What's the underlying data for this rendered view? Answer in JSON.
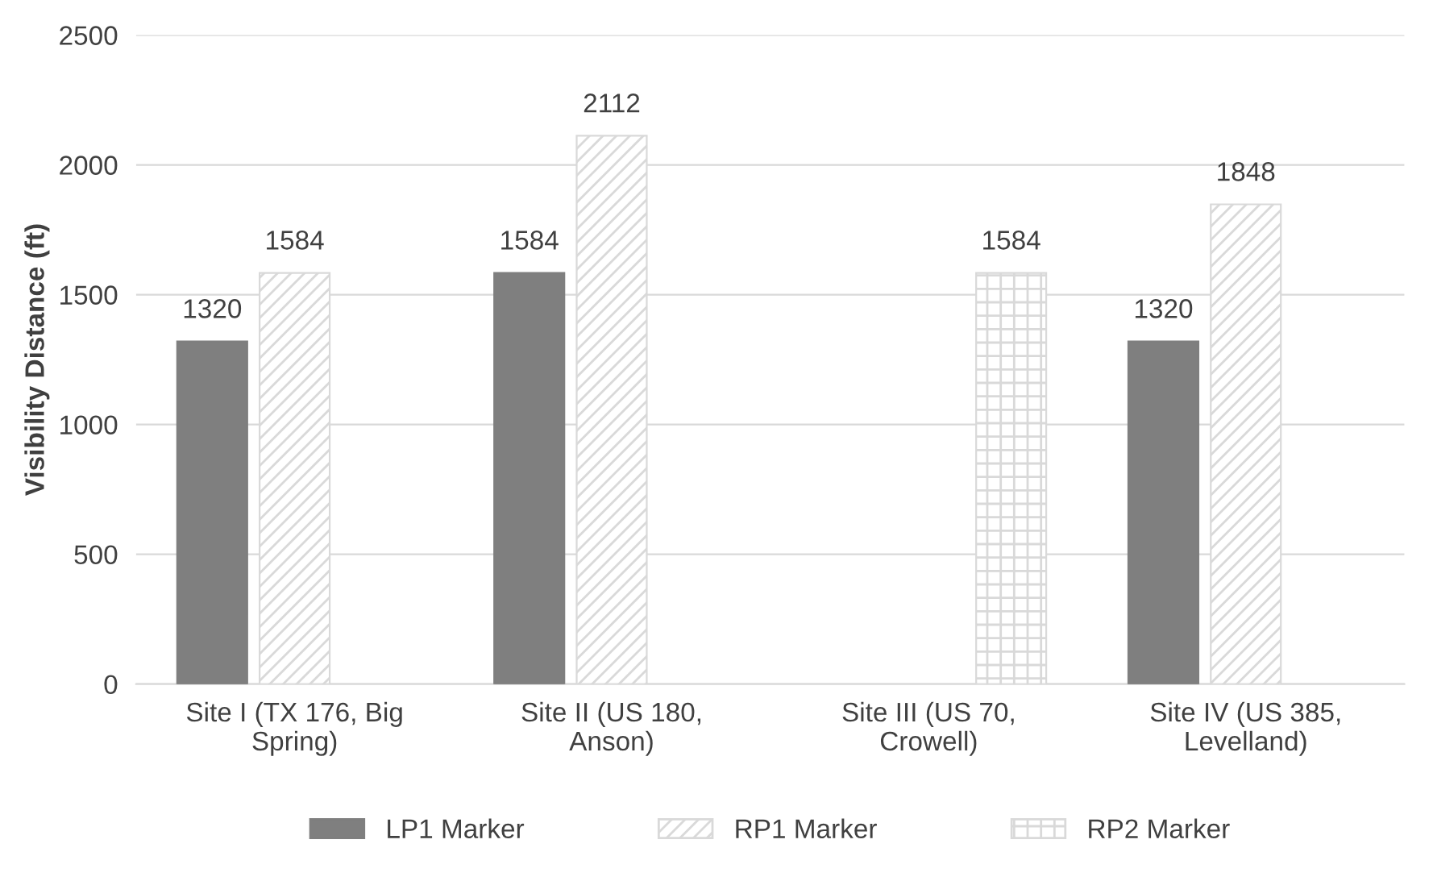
{
  "chart_data": {
    "type": "bar",
    "ylabel": "Visibility Distance (ft)",
    "categories": [
      "Site I (TX 176, Big\nSpring)",
      "Site II (US 180,\nAnson)",
      "Site III (US 70,\nCrowell)",
      "Site IV (US 385,\nLevelland)"
    ],
    "series": [
      {
        "name": "LP1 Marker",
        "color": "#7f7f7f",
        "values": [
          1320,
          1584,
          null,
          1320
        ]
      },
      {
        "name": "RP1 Marker",
        "color": "#d9d9d9",
        "values": [
          1584,
          2112,
          null,
          1848
        ]
      },
      {
        "name": "RP2 Marker",
        "color": "#d9d9d9",
        "values": [
          null,
          null,
          1584,
          null
        ]
      }
    ],
    "ylim": [
      0,
      2500
    ],
    "yticks": [
      0,
      500,
      1000,
      1500,
      2000,
      2500
    ],
    "grid": "y",
    "legend": "bottom",
    "data_labels": true
  }
}
